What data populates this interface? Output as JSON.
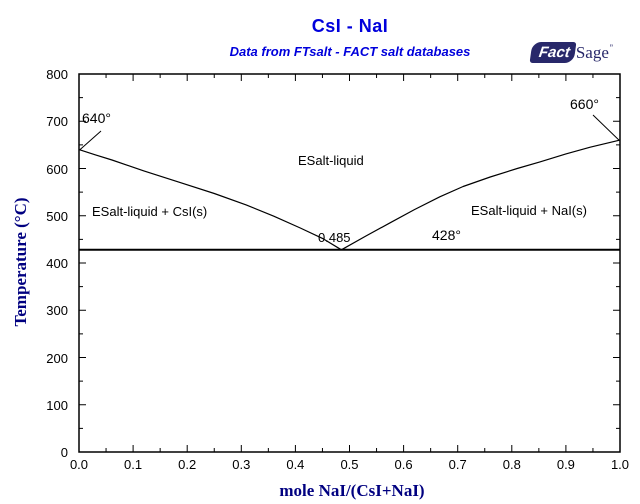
{
  "title": "CsI - NaI",
  "subtitle": "Data from FTsalt - FACT salt databases",
  "logo": {
    "fact": "Fact",
    "sage": "Sage",
    "tm": "”"
  },
  "colors": {
    "title_blue": "#0000DC",
    "axis_title_navy": "#000080",
    "line_black": "#000000",
    "logo_navy": "#28286A",
    "background": "#FFFFFF"
  },
  "axes": {
    "x": {
      "title": "mole NaI/(CsI+NaI)",
      "tick_labels": [
        "0.0",
        "0.1",
        "0.2",
        "0.3",
        "0.4",
        "0.5",
        "0.6",
        "0.7",
        "0.8",
        "0.9",
        "1.0"
      ]
    },
    "y": {
      "title": "Temperature (°C)",
      "tick_labels": [
        "0",
        "100",
        "200",
        "300",
        "400",
        "500",
        "600",
        "700",
        "800"
      ]
    }
  },
  "region_labels": {
    "liquid": "ESalt-liquid",
    "left": "ESalt-liquid + CsI(s)",
    "right": "ESalt-liquid + NaI(s)"
  },
  "annotations": {
    "csi_melting": "640°",
    "nai_melting": "660°",
    "eutectic_composition": "0.485",
    "eutectic_temperature": "428°"
  },
  "chart_data": {
    "type": "line",
    "title": "CsI - NaI",
    "subtitle": "Data from FTsalt - FACT salt databases",
    "xlabel": "mole NaI/(CsI+NaI)",
    "ylabel": "Temperature (°C)",
    "xlim": [
      0,
      1
    ],
    "ylim": [
      0,
      800
    ],
    "x_ticks": [
      0,
      0.1,
      0.2,
      0.3,
      0.4,
      0.5,
      0.6,
      0.7,
      0.8,
      0.9,
      1.0
    ],
    "y_ticks": [
      0,
      100,
      200,
      300,
      400,
      500,
      600,
      700,
      800
    ],
    "x_minor_step": 0.05,
    "y_minor_step": 50,
    "grid": false,
    "legend": false,
    "series": [
      {
        "name": "left-liquidus",
        "label": "Liquidus CsI side (ESalt-liquid / ESalt-liquid + CsI(s) boundary)",
        "x": [
          0,
          0.03,
          0.061,
          0.12,
          0.185,
          0.25,
          0.309,
          0.36,
          0.409,
          0.45,
          0.485
        ],
        "y": [
          640,
          629,
          618,
          595,
          571,
          547,
          523,
          499,
          474,
          452,
          428
        ]
      },
      {
        "name": "right-liquidus",
        "label": "Liquidus NaI side (ESalt-liquid / ESalt-liquid + NaI(s) boundary)",
        "x": [
          0.485,
          0.53,
          0.575,
          0.62,
          0.667,
          0.71,
          0.76,
          0.81,
          0.852,
          0.9,
          0.945,
          1.0
        ],
        "y": [
          428,
          457,
          485,
          513,
          540,
          562,
          582,
          600,
          614,
          631,
          645,
          660
        ]
      }
    ],
    "eutectic": {
      "composition_mole_nai": 0.485,
      "temperature_c": 428,
      "line_x": [
        0,
        1
      ]
    },
    "invariant_points": {
      "csi_melting_c": 640,
      "nai_melting_c": 660,
      "eutectic_c": 428,
      "eutectic_mole_nai": 0.485
    }
  }
}
